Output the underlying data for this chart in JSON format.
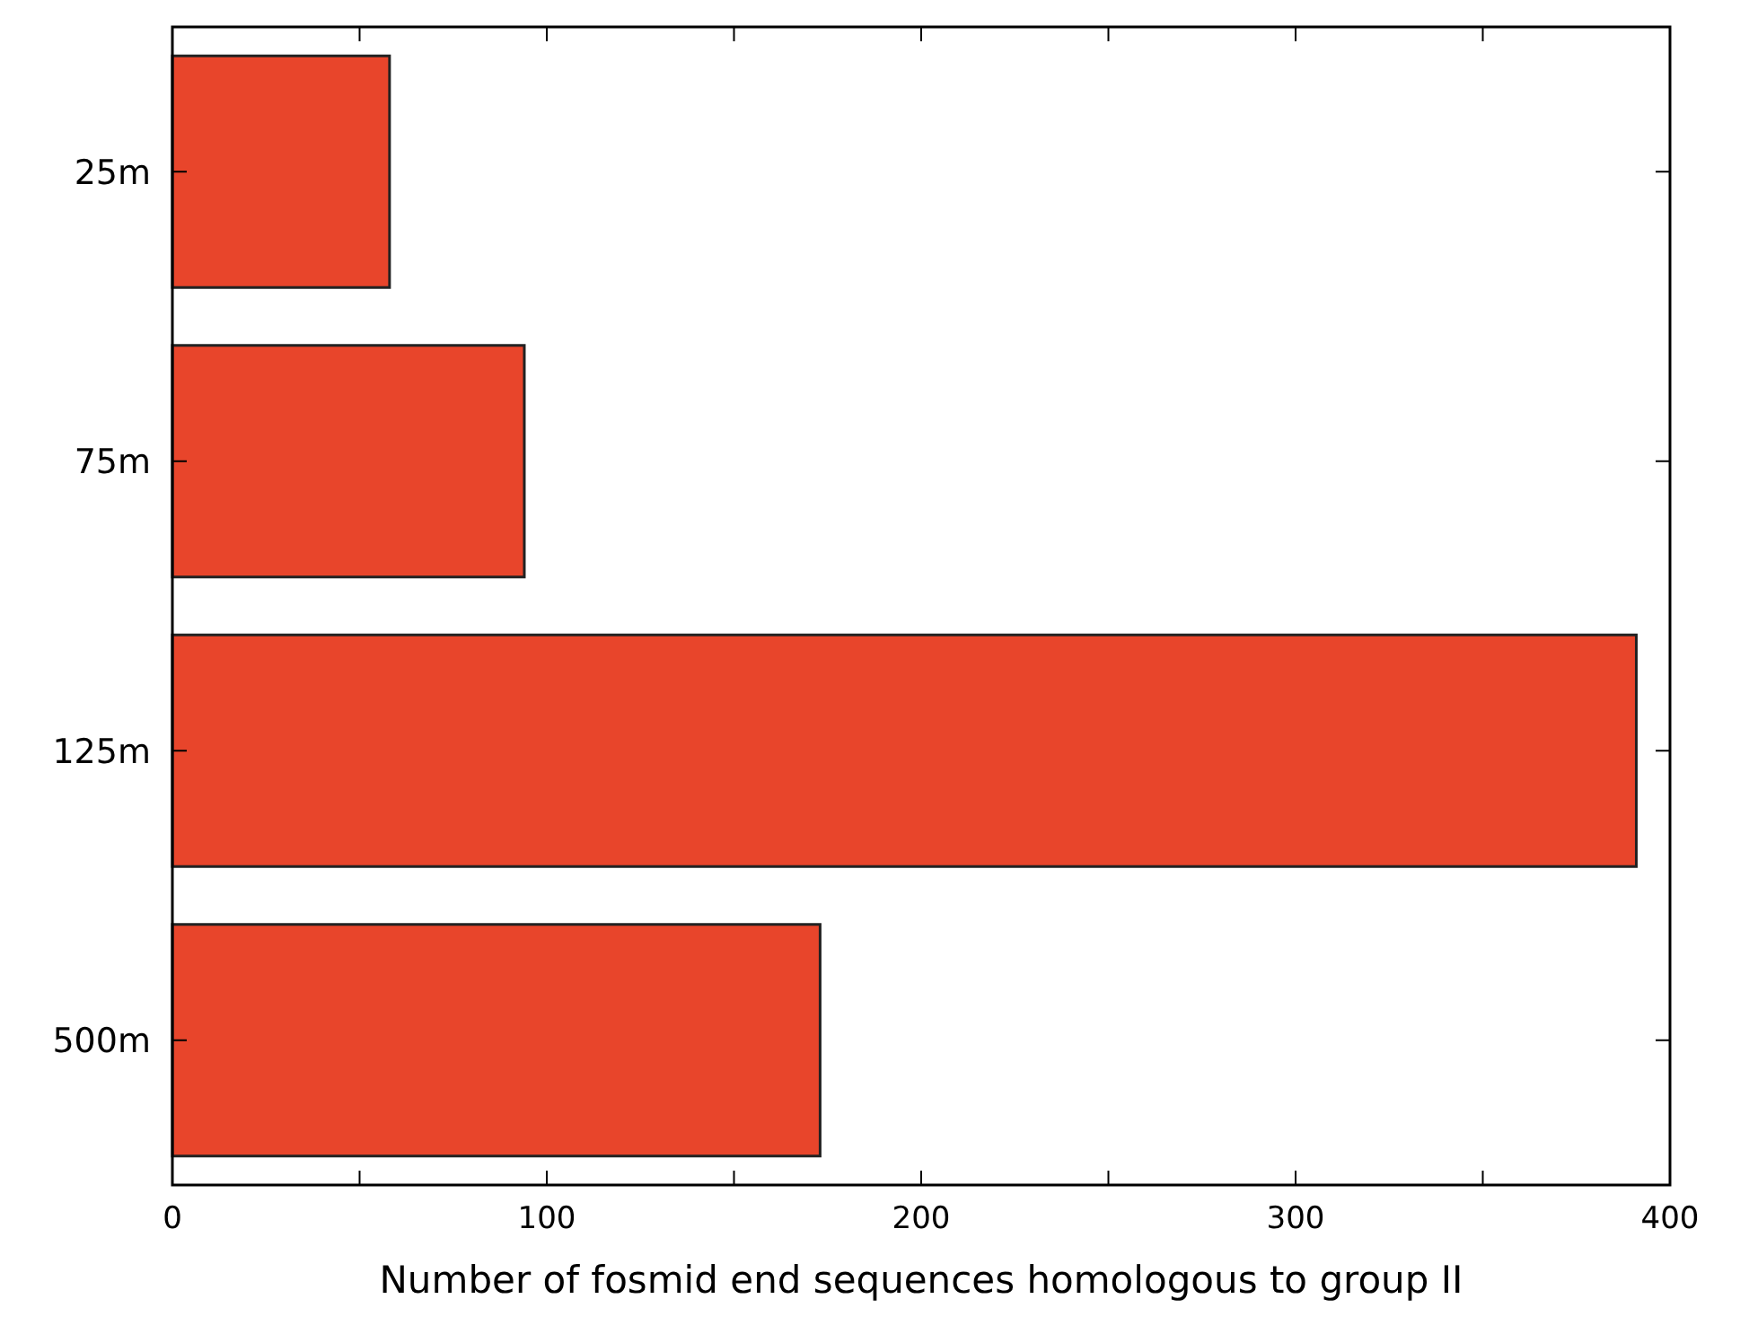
{
  "chart_data": {
    "type": "bar",
    "orientation": "horizontal",
    "xlabel": "Number of fosmid end sequences homologous to group II",
    "categories": [
      "25m",
      "75m",
      "125m",
      "500m"
    ],
    "values": [
      58,
      94,
      391,
      173
    ],
    "color": "#e8452b",
    "xlim": [
      0,
      400
    ],
    "xticks": [
      0,
      {
        "value": 50,
        "label": null
      },
      100,
      {
        "value": 150,
        "label": null
      },
      200,
      {
        "value": 250,
        "label": null
      },
      300,
      {
        "value": 350,
        "label": null
      },
      400
    ],
    "grid": false
  }
}
